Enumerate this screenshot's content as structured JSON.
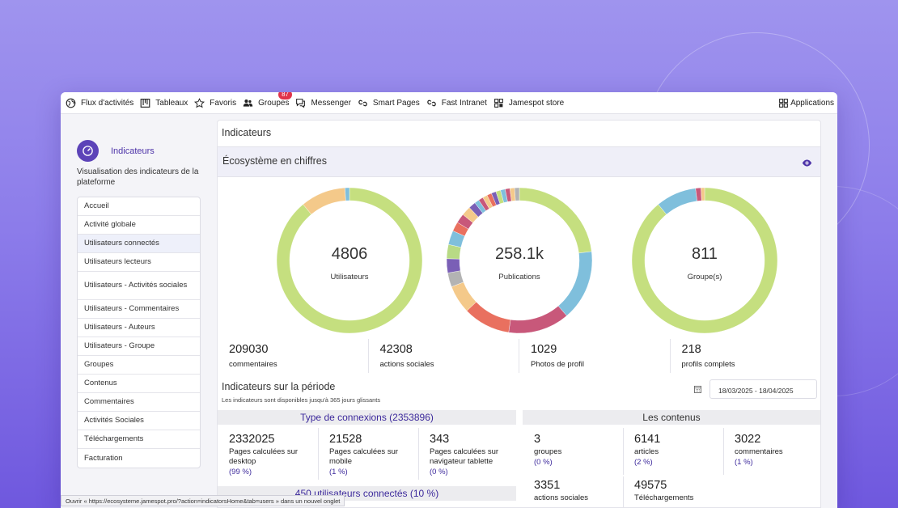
{
  "topbar": {
    "items": [
      {
        "label": "Flux d'activités",
        "icon": "globe-icon"
      },
      {
        "label": "Tableaux",
        "icon": "kanban-icon"
      },
      {
        "label": "Favoris",
        "icon": "star-icon"
      },
      {
        "label": "Groupes",
        "icon": "users-icon",
        "badge": "87"
      },
      {
        "label": "Messenger",
        "icon": "chat-icon"
      },
      {
        "label": "Smart Pages",
        "icon": "link-icon"
      },
      {
        "label": "Fast Intranet",
        "icon": "link-icon"
      },
      {
        "label": "Jamespot store",
        "icon": "grid-icon"
      }
    ],
    "applications": "Applications"
  },
  "sidebar": {
    "title": "Indicateurs",
    "description": "Visualisation des indicateurs de la plateforme",
    "items": [
      {
        "label": "Accueil"
      },
      {
        "label": "Activité globale"
      },
      {
        "label": "Utilisateurs connectés",
        "active": true
      },
      {
        "label": "Utilisateurs lecteurs"
      },
      {
        "label": "Utilisateurs - Activités sociales"
      },
      {
        "label": "Utilisateurs - Commentaires"
      },
      {
        "label": "Utilisateurs - Auteurs"
      },
      {
        "label": "Utilisateurs - Groupe"
      },
      {
        "label": "Groupes"
      },
      {
        "label": "Contenus"
      },
      {
        "label": "Commentaires"
      },
      {
        "label": "Activités Sociales"
      },
      {
        "label": "Téléchargements"
      },
      {
        "label": "Facturation"
      }
    ]
  },
  "main": {
    "title": "Indicateurs",
    "ecosystem_title": "Écosystème en chiffres",
    "donuts": [
      {
        "value": "4806",
        "label": "Utilisateurs"
      },
      {
        "value": "258.1k",
        "label": "Publications"
      },
      {
        "value": "811",
        "label": "Groupe(s)"
      }
    ],
    "stats": [
      {
        "value": "209030",
        "label": "commentaires"
      },
      {
        "value": "42308",
        "label": "actions sociales"
      },
      {
        "value": "1029",
        "label": "Photos de profil"
      },
      {
        "value": "218",
        "label": "profils complets"
      }
    ],
    "period": {
      "title": "Indicateurs sur la période",
      "subtitle": "Les indicateurs sont disponibles jusqu'à 365 jours glissants",
      "date_range": "18/03/2025 - 18/04/2025"
    },
    "connexions": {
      "title": "Type de connexions (2353896)",
      "metrics": [
        {
          "value": "2332025",
          "label": "Pages calculées sur desktop",
          "pct": "(99 %)"
        },
        {
          "value": "21528",
          "label": "Pages calculées sur mobile",
          "pct": "(1 %)"
        },
        {
          "value": "343",
          "label": "Pages calculées sur navigateur tablette",
          "pct": "(0 %)"
        }
      ],
      "users_title": "450 utilisateurs connectés (10 %)"
    },
    "contenus": {
      "title": "Les contenus",
      "metrics": [
        {
          "value": "3",
          "label": "groupes",
          "pct": "(0 %)"
        },
        {
          "value": "6141",
          "label": "articles",
          "pct": "(2 %)"
        },
        {
          "value": "3022",
          "label": "commentaires",
          "pct": "(1 %)"
        },
        {
          "value": "3351",
          "label": "actions sociales"
        },
        {
          "value": "49575",
          "label": "Téléchargements"
        }
      ]
    }
  },
  "status_bar": "Ouvrir « https://ecosysteme.jamespot.pro/?action=indicatorsHome&tab=users » dans un nouvel onglet",
  "colors": {
    "accent": "#4d33a8",
    "green": "#c5df7f",
    "blue": "#7fbfdc",
    "pink": "#c8587a",
    "orange": "#f4c98a",
    "red": "#e9705f"
  },
  "chart_data": [
    {
      "type": "pie",
      "title": "",
      "center_value": "4806",
      "center_label": "Utilisateurs",
      "slices": [
        {
          "color": "#c5df7f",
          "value": 89
        },
        {
          "color": "#f4c98a",
          "value": 10
        },
        {
          "color": "#7fbfdc",
          "value": 1
        }
      ]
    },
    {
      "type": "pie",
      "title": "",
      "center_value": "258.1k",
      "center_label": "Publications",
      "slices": [
        {
          "color": "#c5df7f",
          "value": 22
        },
        {
          "color": "#7fbfdc",
          "value": 15
        },
        {
          "color": "#c8587a",
          "value": 13
        },
        {
          "color": "#e9705f",
          "value": 10
        },
        {
          "color": "#f4c98a",
          "value": 6
        },
        {
          "color": "#b3b3b3",
          "value": 3
        },
        {
          "color": "#7a5fb6",
          "value": 3
        },
        {
          "color": "#b8da85",
          "value": 3
        },
        {
          "color": "#7fbfdc",
          "value": 3
        },
        {
          "color": "#e9705f",
          "value": 2
        },
        {
          "color": "#c8587a",
          "value": 2
        },
        {
          "color": "#f4c98a",
          "value": 2
        },
        {
          "color": "#7a5fb6",
          "value": 1.5
        },
        {
          "color": "#7fbfdc",
          "value": 1
        },
        {
          "color": "#c8587a",
          "value": 1
        },
        {
          "color": "#f4c98a",
          "value": 1
        },
        {
          "color": "#e9705f",
          "value": 1
        },
        {
          "color": "#7a5fb6",
          "value": 1
        },
        {
          "color": "#c5df7f",
          "value": 1
        },
        {
          "color": "#7fbfdc",
          "value": 1
        },
        {
          "color": "#c8587a",
          "value": 1
        },
        {
          "color": "#f4c98a",
          "value": 1
        },
        {
          "color": "#b3b3b3",
          "value": 1
        }
      ]
    },
    {
      "type": "pie",
      "title": "",
      "center_value": "811",
      "center_label": "Groupe(s)",
      "slices": [
        {
          "color": "#c5df7f",
          "value": 89
        },
        {
          "color": "#7fbfdc",
          "value": 9
        },
        {
          "color": "#c8587a",
          "value": 1.2
        },
        {
          "color": "#f4c98a",
          "value": 0.8
        }
      ]
    }
  ]
}
